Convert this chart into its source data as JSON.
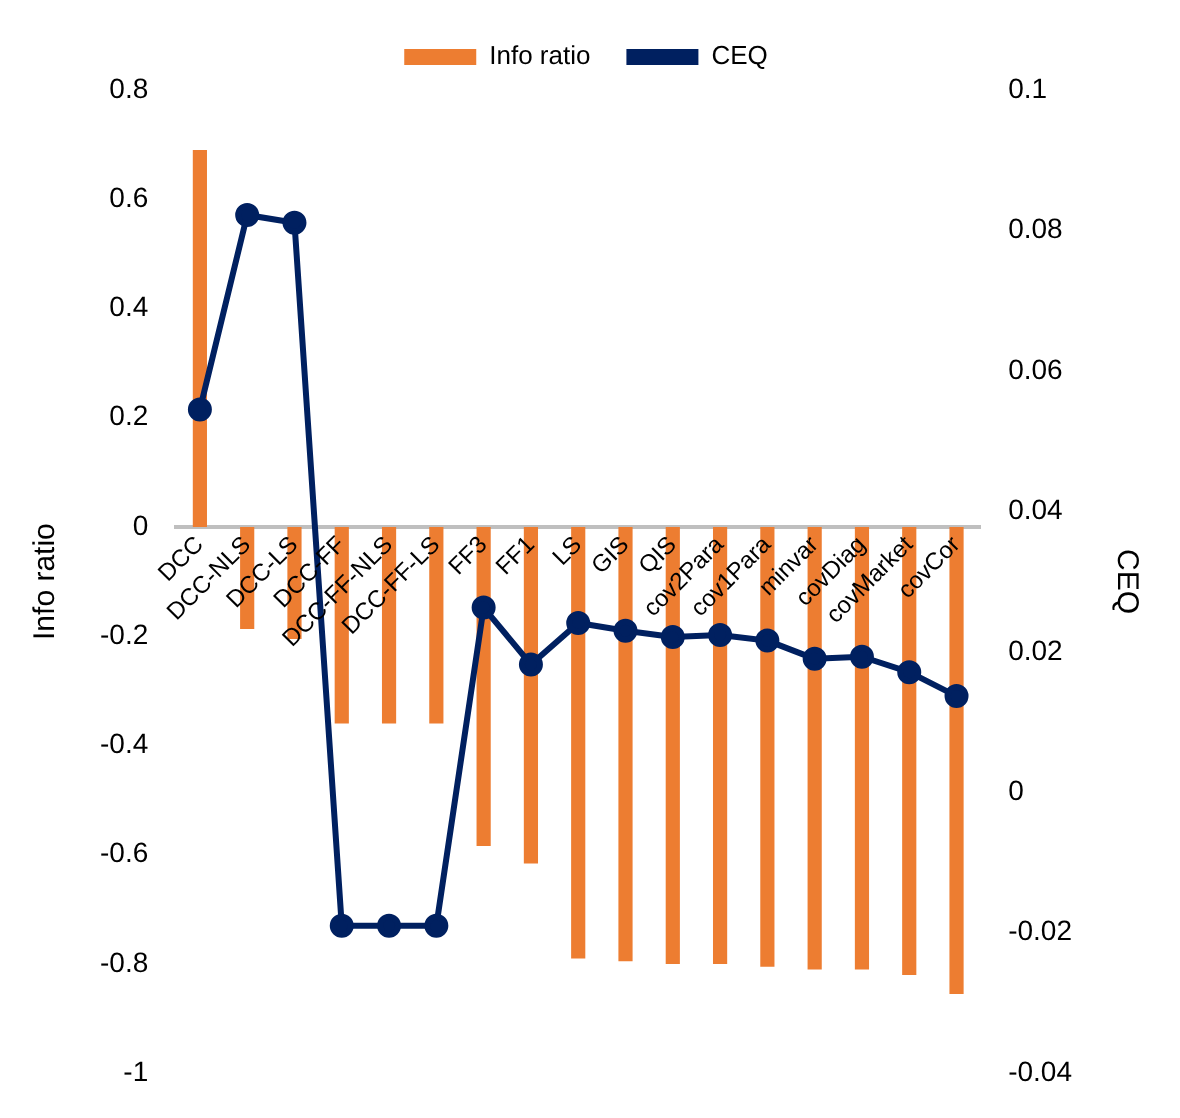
{
  "chart_data": {
    "type": "bar",
    "ylabel": "Info ratio",
    "y2label": "CEQ",
    "categories": [
      "DCC",
      "DCC-NLS",
      "DCC-LS",
      "DCC-FF",
      "DCC-FF-NLS",
      "DCC-FF-LS",
      "FF3",
      "FF1",
      "LS",
      "GIS",
      "QIS",
      "cov2Para",
      "cov1Para",
      "minvar",
      "covDiag",
      "covMarket",
      "covCor"
    ],
    "series": [
      {
        "name": "Info ratio",
        "type": "bar",
        "color": "#ed7d31",
        "values": [
          0.69,
          -0.187,
          -0.205,
          -0.36,
          -0.36,
          -0.36,
          -0.584,
          -0.616,
          -0.79,
          -0.795,
          -0.8,
          -0.8,
          -0.805,
          -0.81,
          -0.81,
          -0.82,
          -0.855
        ]
      },
      {
        "name": "CEQ",
        "type": "line",
        "axis": "y2",
        "color": "#002060",
        "values": [
          0.0545,
          0.0822,
          0.0811,
          -0.019,
          -0.019,
          -0.019,
          0.0263,
          0.0182,
          0.0241,
          0.023,
          0.0221,
          0.0224,
          0.0216,
          0.019,
          0.0193,
          0.0171,
          0.0137
        ]
      }
    ],
    "ylim": [
      -1,
      0.8
    ],
    "yticks": [
      -1,
      -0.8,
      -0.6,
      -0.4,
      -0.2,
      0,
      0.2,
      0.4,
      0.6,
      0.8
    ],
    "y2lim": [
      -0.04,
      0.1
    ],
    "y2ticks": [
      -0.04,
      -0.02,
      0,
      0.02,
      0.04,
      0.06,
      0.08,
      0.1
    ],
    "legend": "top",
    "marker": "circle",
    "grid": false
  }
}
